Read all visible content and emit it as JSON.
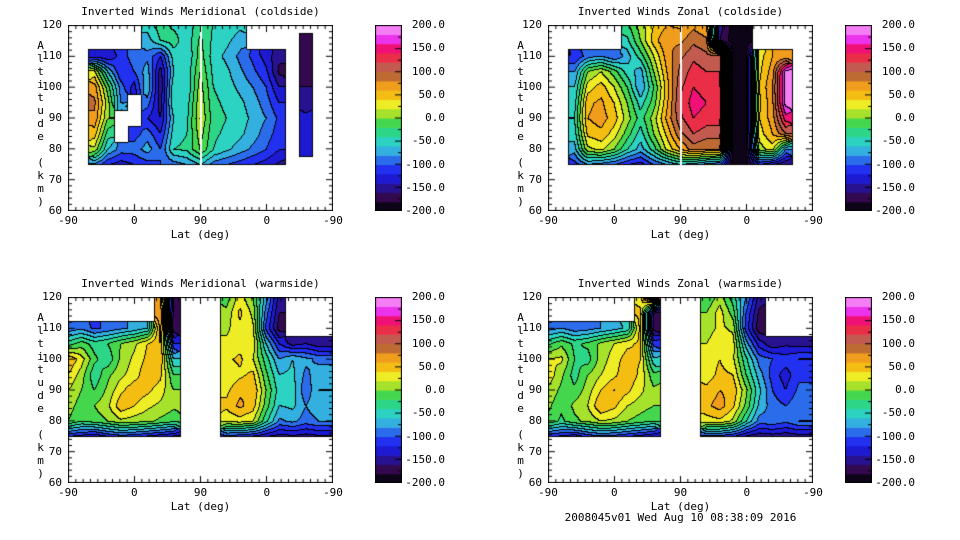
{
  "figure": {
    "background": "#ffffff",
    "frame_color": "#000000"
  },
  "footer": {
    "timestamp_label": "2008045v01 Wed Aug 10 08:38:09 2016"
  },
  "chart_data": {
    "type": "filled_contour",
    "x_axis": {
      "label": "Lat (deg)",
      "tick_labels": [
        "-90",
        "0",
        "90",
        "0",
        "-90"
      ],
      "folded": true
    },
    "y_axis": {
      "label": "Altitude (km)",
      "tick_labels": [
        "120",
        "110",
        "100",
        "90",
        "80",
        "70",
        "60"
      ],
      "range_km": [
        60,
        120
      ]
    },
    "value_scale": {
      "min": -200,
      "max": 200,
      "contour_interval": 20,
      "colorbar_tick_labels": [
        "200.0",
        "150.0",
        "100.0",
        "50.0",
        "0.0",
        "-50.0",
        "-100.0",
        "-150.0",
        "-200.0"
      ],
      "palette_low_to_high": [
        "#0d0517",
        "#33094f",
        "#28128f",
        "#1d1ad2",
        "#2230f0",
        "#2b6ceb",
        "#33b0e0",
        "#2cd2c2",
        "#2dd687",
        "#44d74e",
        "#a6e22c",
        "#edec25",
        "#f3bd12",
        "#f09c1c",
        "#bd6b33",
        "#c25a50",
        "#ea2e47",
        "#f01177",
        "#ec33ec",
        "#f47ef4"
      ]
    },
    "grid_alt_levels_km": [
      120,
      115,
      110,
      105,
      100,
      95,
      90,
      85,
      80,
      75
    ],
    "panels": [
      {
        "id": "meridional-coldside",
        "title": "Inverted Winds Meridional (coldside)",
        "center_white_line": true,
        "grid": [
          [
            null,
            null,
            null,
            null,
            null,
            null,
            -50,
            -30,
            -45,
            -50,
            -30,
            -40,
            -45,
            -55,
            null,
            null,
            null,
            null,
            null,
            null,
            null
          ],
          [
            null,
            null,
            null,
            null,
            null,
            null,
            -70,
            -40,
            -30,
            -55,
            -15,
            -45,
            -55,
            -70,
            null,
            null,
            null,
            null,
            -170,
            null,
            null
          ],
          [
            null,
            null,
            -130,
            -140,
            -110,
            -90,
            -85,
            -120,
            -50,
            -60,
            -10,
            -50,
            -65,
            -85,
            -105,
            -130,
            -155,
            null,
            -180,
            null,
            null
          ],
          [
            null,
            null,
            25,
            -60,
            -120,
            -100,
            -70,
            -150,
            -60,
            -55,
            0,
            -45,
            -55,
            -75,
            -95,
            -115,
            -165,
            null,
            -175,
            null,
            null
          ],
          [
            null,
            null,
            70,
            -10,
            -90,
            -130,
            -60,
            -155,
            -45,
            -60,
            10,
            -40,
            -50,
            -65,
            -80,
            -100,
            -140,
            null,
            -160,
            null,
            null
          ],
          [
            null,
            null,
            85,
            10,
            -80,
            null,
            -90,
            -150,
            -40,
            -50,
            15,
            -35,
            -45,
            -55,
            -70,
            -90,
            -120,
            null,
            -150,
            null,
            null
          ],
          [
            null,
            null,
            75,
            0,
            null,
            null,
            -120,
            -140,
            -60,
            -45,
            20,
            -30,
            -40,
            -50,
            -65,
            -80,
            -105,
            null,
            -135,
            null,
            null
          ],
          [
            null,
            null,
            50,
            -30,
            null,
            -110,
            -90,
            -120,
            -50,
            -40,
            10,
            -35,
            -45,
            -55,
            -70,
            -90,
            -110,
            null,
            -140,
            null,
            null
          ],
          [
            null,
            null,
            15,
            -60,
            -90,
            -90,
            -70,
            -100,
            -40,
            -35,
            0,
            -40,
            -55,
            -70,
            -85,
            -100,
            -120,
            null,
            -125,
            null,
            null
          ],
          [
            null,
            null,
            -85,
            -120,
            -130,
            -120,
            -110,
            -100,
            -90,
            -80,
            -60,
            -90,
            -100,
            -110,
            -120,
            -130,
            -145,
            null,
            null,
            null,
            null
          ]
        ]
      },
      {
        "id": "zonal-coldside",
        "title": "Inverted Winds Zonal (coldside)",
        "center_white_line": true,
        "grid": [
          [
            null,
            null,
            null,
            null,
            null,
            null,
            -25,
            10,
            40,
            60,
            55,
            75,
            60,
            -150,
            -190,
            -190,
            null,
            null,
            null,
            null,
            null
          ],
          [
            null,
            null,
            null,
            null,
            null,
            null,
            -45,
            0,
            50,
            80,
            75,
            95,
            85,
            -160,
            -190,
            -190,
            null,
            null,
            null,
            null,
            null
          ],
          [
            null,
            null,
            -120,
            -90,
            -80,
            -100,
            -70,
            -30,
            20,
            70,
            95,
            115,
            105,
            110,
            -190,
            -190,
            30,
            60,
            60,
            null,
            null
          ],
          [
            null,
            null,
            -80,
            0,
            20,
            -10,
            -50,
            -70,
            0,
            60,
            105,
            130,
            120,
            120,
            -190,
            -190,
            35,
            70,
            190,
            null,
            null
          ],
          [
            null,
            null,
            -60,
            30,
            50,
            20,
            -20,
            -80,
            -20,
            50,
            115,
            140,
            130,
            130,
            -190,
            -190,
            40,
            80,
            190,
            null,
            null
          ],
          [
            null,
            null,
            -50,
            55,
            65,
            40,
            0,
            -50,
            -10,
            55,
            120,
            150,
            140,
            140,
            -190,
            -190,
            35,
            75,
            190,
            null,
            null
          ],
          [
            null,
            null,
            -40,
            60,
            70,
            50,
            10,
            -30,
            10,
            65,
            115,
            140,
            130,
            130,
            -190,
            -190,
            40,
            70,
            150,
            null,
            null
          ],
          [
            null,
            null,
            -50,
            45,
            55,
            30,
            -10,
            -50,
            0,
            45,
            95,
            120,
            110,
            110,
            -190,
            -190,
            30,
            60,
            100,
            null,
            null
          ],
          [
            null,
            null,
            -70,
            15,
            25,
            0,
            -40,
            -70,
            -30,
            25,
            60,
            90,
            80,
            80,
            -190,
            -190,
            10,
            30,
            -80,
            null,
            null
          ],
          [
            null,
            null,
            -110,
            -80,
            -90,
            -100,
            -120,
            -130,
            -100,
            -80,
            -60,
            -70,
            -90,
            -100,
            -190,
            -190,
            -120,
            -140,
            -160,
            null,
            null
          ]
        ]
      },
      {
        "id": "meridional-warmside",
        "title": "Inverted Winds Meridional (warmside)",
        "center_white_line": false,
        "grid": [
          [
            null,
            null,
            null,
            null,
            null,
            null,
            null,
            60,
            -160,
            null,
            null,
            null,
            -10,
            30,
            0,
            -70,
            -150,
            null,
            null,
            null,
            null
          ],
          [
            null,
            null,
            null,
            null,
            null,
            null,
            null,
            75,
            -170,
            null,
            null,
            null,
            5,
            45,
            15,
            -90,
            -160,
            null,
            null,
            null,
            null
          ],
          [
            -95,
            -85,
            -105,
            -95,
            -85,
            -75,
            -60,
            70,
            -175,
            null,
            null,
            null,
            15,
            35,
            25,
            -105,
            -170,
            null,
            null,
            null,
            null
          ],
          [
            -30,
            -10,
            -30,
            -20,
            0,
            15,
            40,
            60,
            -120,
            null,
            null,
            null,
            25,
            30,
            35,
            -60,
            -120,
            -150,
            -140,
            -155,
            -155
          ],
          [
            60,
            30,
            -15,
            -35,
            5,
            25,
            45,
            55,
            -60,
            null,
            null,
            null,
            35,
            45,
            20,
            -30,
            -80,
            -60,
            -75,
            -85,
            -85
          ],
          [
            40,
            10,
            -35,
            -5,
            15,
            30,
            55,
            45,
            -20,
            null,
            null,
            null,
            25,
            35,
            45,
            -15,
            -60,
            -55,
            -85,
            -70,
            -70
          ],
          [
            20,
            0,
            -20,
            5,
            35,
            55,
            45,
            30,
            0,
            null,
            null,
            null,
            35,
            55,
            60,
            0,
            -50,
            -50,
            -95,
            -60,
            -60
          ],
          [
            10,
            -10,
            0,
            15,
            55,
            40,
            25,
            15,
            5,
            null,
            null,
            null,
            45,
            65,
            50,
            -10,
            -60,
            -55,
            -80,
            -65,
            -65
          ],
          [
            0,
            -20,
            -10,
            0,
            15,
            10,
            5,
            -5,
            -15,
            null,
            null,
            null,
            25,
            30,
            20,
            -35,
            -85,
            -75,
            -90,
            -80,
            -80
          ],
          [
            -120,
            -130,
            -140,
            -120,
            -110,
            -115,
            -125,
            -135,
            -145,
            null,
            null,
            null,
            -110,
            -115,
            -125,
            -140,
            -150,
            -145,
            -150,
            -145,
            -145
          ]
        ]
      },
      {
        "id": "zonal-warmside",
        "title": "Inverted Winds Zonal (warmside)",
        "center_white_line": false,
        "grid": [
          [
            null,
            null,
            null,
            null,
            null,
            null,
            null,
            30,
            170,
            null,
            null,
            null,
            -20,
            10,
            -30,
            -80,
            -150,
            null,
            null,
            null,
            null
          ],
          [
            null,
            null,
            null,
            null,
            null,
            null,
            null,
            45,
            -165,
            null,
            null,
            null,
            0,
            30,
            -10,
            -100,
            -165,
            null,
            null,
            null,
            null
          ],
          [
            -90,
            -80,
            -95,
            -90,
            -80,
            -70,
            -55,
            50,
            -170,
            null,
            null,
            null,
            10,
            25,
            15,
            -110,
            -175,
            null,
            null,
            null,
            null
          ],
          [
            -25,
            -5,
            -25,
            -15,
            5,
            20,
            35,
            45,
            -110,
            null,
            null,
            null,
            20,
            35,
            30,
            -70,
            -130,
            -155,
            -145,
            -150,
            -150
          ],
          [
            20,
            25,
            -20,
            -30,
            10,
            30,
            50,
            40,
            -55,
            null,
            null,
            null,
            30,
            40,
            25,
            -35,
            -90,
            -100,
            -110,
            -100,
            -100
          ],
          [
            35,
            5,
            -30,
            0,
            20,
            35,
            55,
            35,
            -15,
            null,
            null,
            null,
            30,
            45,
            40,
            -20,
            -70,
            -110,
            -130,
            -105,
            -105
          ],
          [
            15,
            -5,
            -15,
            10,
            40,
            60,
            45,
            25,
            5,
            null,
            null,
            null,
            45,
            60,
            55,
            5,
            -55,
            -100,
            -120,
            -95,
            -95
          ],
          [
            5,
            -15,
            5,
            20,
            60,
            45,
            20,
            10,
            0,
            null,
            null,
            null,
            55,
            70,
            45,
            -5,
            -65,
            -90,
            -100,
            -85,
            -85
          ],
          [
            -5,
            -25,
            -5,
            5,
            20,
            15,
            0,
            -10,
            -20,
            null,
            null,
            null,
            30,
            35,
            15,
            -40,
            -90,
            -85,
            -95,
            -80,
            -80
          ],
          [
            -115,
            -125,
            -135,
            -115,
            -105,
            -110,
            -120,
            -130,
            -140,
            null,
            null,
            null,
            -105,
            -110,
            -120,
            -145,
            -155,
            -150,
            -155,
            -150,
            -150
          ]
        ]
      }
    ]
  }
}
